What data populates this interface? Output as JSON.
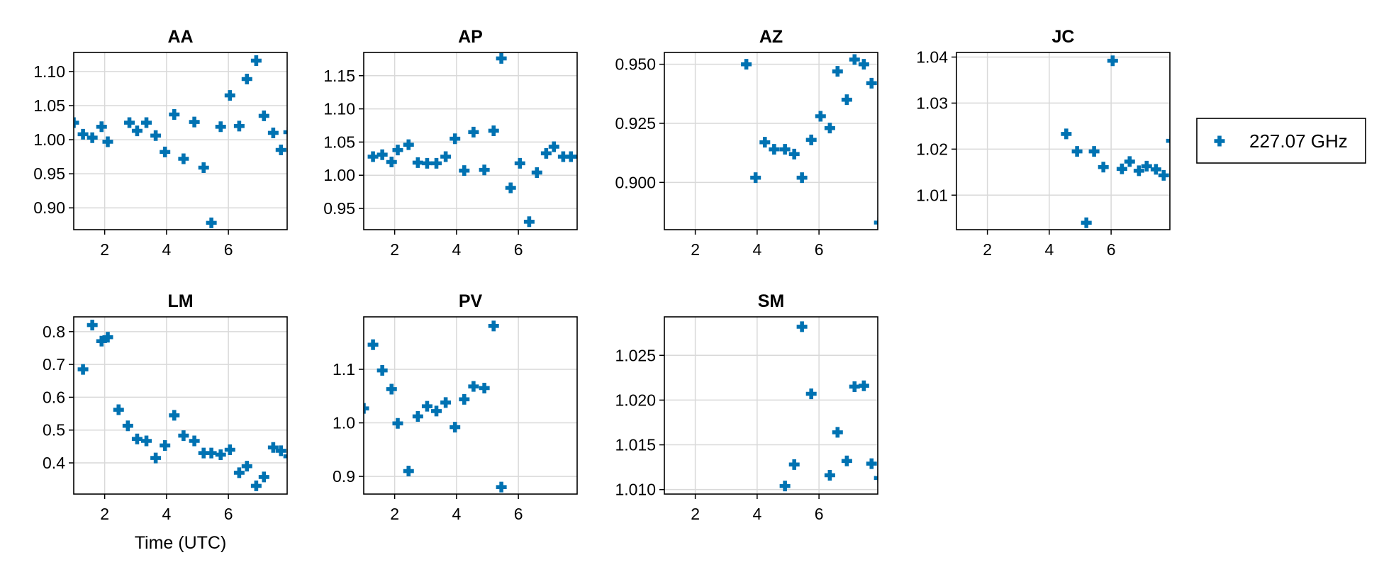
{
  "chart_data": [
    {
      "type": "scatter",
      "title": "AA",
      "xlabel": "",
      "xlim": [
        1.0,
        7.9
      ],
      "ylim": [
        0.868,
        1.128
      ],
      "xticks": [
        2,
        4,
        6
      ],
      "yticks": [
        0.9,
        0.95,
        1.0,
        1.05,
        1.1
      ],
      "ytick_labels": [
        "0.90",
        "0.95",
        "1.00",
        "1.05",
        "1.10"
      ],
      "series": [
        {
          "name": "227.07 GHz",
          "x": [
            1.0,
            1.3,
            1.6,
            1.9,
            2.1,
            2.8,
            3.05,
            3.35,
            3.65,
            3.95,
            4.25,
            4.55,
            4.9,
            5.2,
            5.45,
            5.75,
            6.05,
            6.35,
            6.6,
            6.9,
            7.15,
            7.45,
            7.7,
            7.95
          ],
          "y": [
            1.025,
            1.008,
            1.003,
            1.019,
            0.997,
            1.025,
            1.013,
            1.025,
            1.006,
            0.982,
            1.037,
            0.972,
            1.026,
            0.959,
            0.878,
            1.019,
            1.065,
            1.02,
            1.089,
            1.116,
            1.035,
            1.01,
            0.985,
            1.011
          ]
        }
      ]
    },
    {
      "type": "scatter",
      "title": "AP",
      "xlabel": "",
      "xlim": [
        1.0,
        7.9
      ],
      "ylim": [
        0.918,
        1.185
      ],
      "xticks": [
        2,
        4,
        6
      ],
      "yticks": [
        0.95,
        1.0,
        1.05,
        1.1,
        1.15
      ],
      "ytick_labels": [
        "0.95",
        "1.00",
        "1.05",
        "1.10",
        "1.15"
      ],
      "series": [
        {
          "name": "227.07 GHz",
          "x": [
            1.3,
            1.6,
            1.9,
            2.1,
            2.45,
            2.75,
            3.05,
            3.35,
            3.65,
            3.95,
            4.25,
            4.55,
            4.9,
            5.2,
            5.45,
            5.75,
            6.05,
            6.35,
            6.6,
            6.9,
            7.15,
            7.45,
            7.7,
            7.95
          ],
          "y": [
            1.028,
            1.031,
            1.02,
            1.038,
            1.046,
            1.019,
            1.018,
            1.018,
            1.028,
            1.055,
            1.007,
            1.065,
            1.008,
            1.067,
            1.176,
            0.981,
            1.018,
            0.93,
            1.004,
            1.033,
            1.043,
            1.028,
            1.028,
            1.028
          ]
        }
      ]
    },
    {
      "type": "scatter",
      "title": "AZ",
      "xlabel": "",
      "xlim": [
        1.0,
        7.9
      ],
      "ylim": [
        0.88,
        0.955
      ],
      "xticks": [
        2,
        4,
        6
      ],
      "yticks": [
        0.9,
        0.925,
        0.95
      ],
      "ytick_labels": [
        "0.900",
        "0.925",
        "0.950"
      ],
      "series": [
        {
          "name": "227.07 GHz",
          "x": [
            3.65,
            3.95,
            4.25,
            4.55,
            4.9,
            5.2,
            5.45,
            5.75,
            6.05,
            6.35,
            6.6,
            6.9,
            7.15,
            7.45,
            7.7,
            7.95
          ],
          "y": [
            0.95,
            0.902,
            0.917,
            0.914,
            0.914,
            0.912,
            0.902,
            0.918,
            0.928,
            0.923,
            0.947,
            0.935,
            0.952,
            0.95,
            0.942,
            0.883
          ]
        }
      ]
    },
    {
      "type": "scatter",
      "title": "JC",
      "xlabel": "",
      "xlim": [
        1.0,
        7.9
      ],
      "ylim": [
        1.0025,
        1.041
      ],
      "xticks": [
        2,
        4,
        6
      ],
      "yticks": [
        1.01,
        1.02,
        1.03,
        1.04
      ],
      "ytick_labels": [
        "1.01",
        "1.02",
        "1.03",
        "1.04"
      ],
      "series": [
        {
          "name": "227.07 GHz",
          "x": [
            4.55,
            4.9,
            5.2,
            5.45,
            5.75,
            6.05,
            6.35,
            6.6,
            6.9,
            7.15,
            7.45,
            7.7,
            7.95
          ],
          "y": [
            1.0233,
            1.0195,
            1.004,
            1.0195,
            1.0161,
            1.0392,
            1.0157,
            1.0173,
            1.0153,
            1.0163,
            1.0156,
            1.0143,
            1.0218
          ]
        }
      ]
    },
    {
      "type": "scatter",
      "title": "LM",
      "xlabel": "Time (UTC)",
      "xlim": [
        1.0,
        7.9
      ],
      "ylim": [
        0.305,
        0.845
      ],
      "xticks": [
        2,
        4,
        6
      ],
      "yticks": [
        0.4,
        0.5,
        0.6,
        0.7,
        0.8
      ],
      "ytick_labels": [
        "0.4",
        "0.5",
        "0.6",
        "0.7",
        "0.8"
      ],
      "series": [
        {
          "name": "227.07 GHz",
          "x": [
            1.3,
            1.6,
            1.9,
            2.1,
            2.45,
            2.75,
            3.05,
            3.35,
            3.65,
            3.95,
            4.25,
            4.55,
            4.9,
            5.2,
            5.45,
            5.75,
            6.05,
            6.35,
            6.6,
            6.9,
            7.15,
            7.45,
            7.7,
            7.95
          ],
          "y": [
            0.685,
            0.82,
            0.771,
            0.783,
            0.562,
            0.513,
            0.473,
            0.467,
            0.415,
            0.453,
            0.545,
            0.483,
            0.467,
            0.43,
            0.43,
            0.425,
            0.44,
            0.37,
            0.39,
            0.33,
            0.357,
            0.447,
            0.437,
            0.42
          ]
        }
      ]
    },
    {
      "type": "scatter",
      "title": "PV",
      "xlabel": "",
      "xlim": [
        1.0,
        7.9
      ],
      "ylim": [
        0.867,
        1.198
      ],
      "xticks": [
        2,
        4,
        6
      ],
      "yticks": [
        0.9,
        1.0,
        1.1
      ],
      "ytick_labels": [
        "0.9",
        "1.0",
        "1.1"
      ],
      "series": [
        {
          "name": "227.07 GHz",
          "x": [
            1.0,
            1.3,
            1.6,
            1.9,
            2.1,
            2.45,
            2.75,
            3.05,
            3.35,
            3.65,
            3.95,
            4.25,
            4.55,
            4.9,
            5.2,
            5.45
          ],
          "y": [
            1.027,
            1.146,
            1.098,
            1.063,
            0.999,
            0.91,
            1.012,
            1.031,
            1.022,
            1.038,
            0.992,
            1.044,
            1.068,
            1.065,
            1.181,
            0.88
          ]
        }
      ]
    },
    {
      "type": "scatter",
      "title": "SM",
      "xlabel": "",
      "xlim": [
        1.0,
        7.9
      ],
      "ylim": [
        1.0095,
        1.0293
      ],
      "xticks": [
        2,
        4,
        6
      ],
      "yticks": [
        1.01,
        1.015,
        1.02,
        1.025
      ],
      "ytick_labels": [
        "1.010",
        "1.015",
        "1.020",
        "1.025"
      ],
      "series": [
        {
          "name": "227.07 GHz",
          "x": [
            4.9,
            5.2,
            5.45,
            5.75,
            6.35,
            6.6,
            6.9,
            7.15,
            7.45,
            7.7,
            7.95
          ],
          "y": [
            1.0104,
            1.0128,
            1.0282,
            1.0207,
            1.0116,
            1.0164,
            1.0132,
            1.0215,
            1.0216,
            1.0129,
            1.0113
          ]
        }
      ]
    }
  ],
  "legend": {
    "label": "227.07 GHz",
    "marker": "plus",
    "color": "#0072b2"
  },
  "style": {
    "marker_color": "#0072b2"
  }
}
